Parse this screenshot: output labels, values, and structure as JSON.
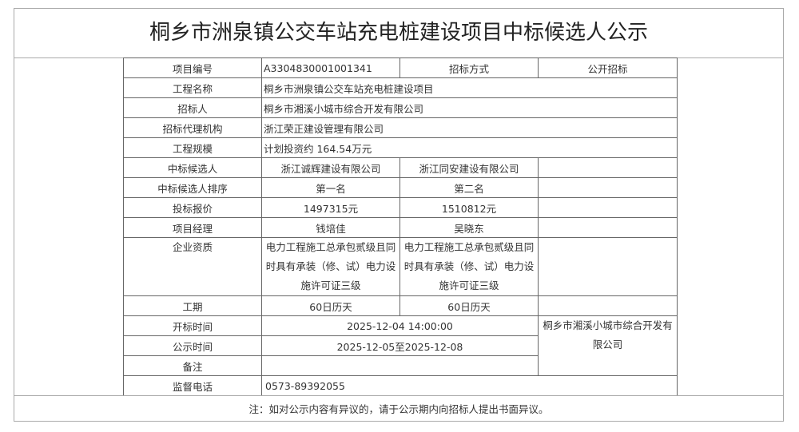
{
  "title": "桐乡市洲泉镇公交车站充电桩建设项目中标候选人公示",
  "rows": {
    "project_no": {
      "label": "项目编号",
      "value": "A3304830001001341",
      "method_label": "招标方式",
      "method_value": "公开招标"
    },
    "project_name": {
      "label": "工程名称",
      "value": "桐乡市洲泉镇公交车站充电桩建设项目"
    },
    "tenderer": {
      "label": "招标人",
      "value": "桐乡市湘溪小城市综合开发有限公司"
    },
    "agency": {
      "label": "招标代理机构",
      "value": "浙江荣正建设管理有限公司"
    },
    "scale": {
      "label": "工程规模",
      "value": "计划投资约 164.54万元"
    },
    "candidates": {
      "label": "中标候选人",
      "values": [
        "浙江诚辉建设有限公司",
        "浙江同安建设有限公司"
      ]
    },
    "ranking": {
      "label": "中标候选人排序",
      "values": [
        "第一名",
        "第二名"
      ]
    },
    "bid_price": {
      "label": "投标报价",
      "values": [
        "1497315元",
        "1510812元"
      ]
    },
    "manager": {
      "label": "项目经理",
      "values": [
        "钱培佳",
        "吴晓东"
      ]
    },
    "qualification": {
      "label": "企业资质",
      "values": [
        "电力工程施工总承包贰级且同时具有承装（修、试）电力设施许可证三级",
        "电力工程施工总承包贰级且同时具有承装（修、试）电力设施许可证三级"
      ]
    },
    "duration": {
      "label": "工期",
      "values": [
        "60日历天",
        "60日历天"
      ]
    },
    "open_time": {
      "label": "开标时间",
      "value": "2025-12-04 14:00:00"
    },
    "publicity": {
      "label": "公示时间",
      "value": "2025-12-05至2025-12-08"
    },
    "remarks": {
      "label": "备注",
      "value": ""
    },
    "issuer": "桐乡市湘溪小城市综合开发有限公司",
    "phone": {
      "label": "监督电话",
      "value": "0573-89392055"
    }
  },
  "note": "注：如对公示内容有异议的，请于公示期内向招标人提出书面异议。"
}
